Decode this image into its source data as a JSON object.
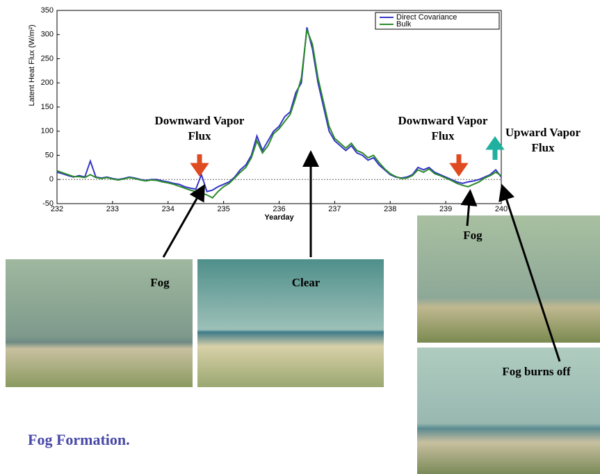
{
  "chart_data": {
    "type": "line",
    "xlabel": "Yearday",
    "ylabel": "Latent Heat Flux (W/m²)",
    "xlim": [
      232,
      240
    ],
    "ylim": [
      -50,
      350
    ],
    "xticks": [
      232,
      233,
      234,
      235,
      236,
      237,
      238,
      239,
      240
    ],
    "yticks": [
      -50,
      0,
      50,
      100,
      150,
      200,
      250,
      300,
      350
    ],
    "legend": "upper right",
    "x": [
      232.0,
      232.1,
      232.2,
      232.3,
      232.4,
      232.5,
      232.6,
      232.7,
      232.8,
      232.9,
      233.0,
      233.1,
      233.2,
      233.3,
      233.4,
      233.5,
      233.6,
      233.7,
      233.8,
      233.9,
      234.0,
      234.1,
      234.2,
      234.3,
      234.4,
      234.5,
      234.6,
      234.7,
      234.8,
      234.9,
      235.0,
      235.1,
      235.2,
      235.3,
      235.4,
      235.5,
      235.6,
      235.7,
      235.8,
      235.9,
      236.0,
      236.1,
      236.2,
      236.3,
      236.4,
      236.5,
      236.6,
      236.7,
      236.8,
      236.9,
      237.0,
      237.1,
      237.2,
      237.3,
      237.4,
      237.5,
      237.6,
      237.7,
      237.8,
      237.9,
      238.0,
      238.1,
      238.2,
      238.3,
      238.4,
      238.5,
      238.6,
      238.7,
      238.8,
      238.9,
      239.0,
      239.1,
      239.2,
      239.3,
      239.4,
      239.5,
      239.6,
      239.7,
      239.8,
      239.9,
      240.0
    ],
    "series": [
      {
        "name": "Direct Covariance",
        "color": "#3535c8",
        "values": [
          15,
          12,
          8,
          5,
          8,
          5,
          38,
          5,
          3,
          5,
          2,
          0,
          2,
          5,
          3,
          0,
          -2,
          0,
          0,
          -3,
          -5,
          -8,
          -10,
          -15,
          -18,
          -20,
          10,
          -25,
          -22,
          -15,
          -10,
          -5,
          5,
          20,
          30,
          50,
          90,
          60,
          80,
          100,
          110,
          130,
          140,
          180,
          200,
          315,
          270,
          200,
          150,
          100,
          80,
          70,
          60,
          70,
          55,
          50,
          40,
          45,
          30,
          20,
          10,
          5,
          3,
          5,
          10,
          25,
          20,
          25,
          15,
          10,
          5,
          0,
          -5,
          -8,
          -5,
          -3,
          0,
          5,
          10,
          20,
          5
        ]
      },
      {
        "name": "Bulk",
        "color": "#2a8a2a",
        "values": [
          18,
          14,
          10,
          6,
          6,
          4,
          10,
          4,
          2,
          4,
          1,
          -1,
          1,
          4,
          2,
          -1,
          -3,
          -1,
          -2,
          -5,
          -7,
          -10,
          -14,
          -18,
          -22,
          -25,
          -28,
          -32,
          -38,
          -25,
          -15,
          -8,
          3,
          15,
          25,
          45,
          80,
          55,
          70,
          95,
          105,
          120,
          135,
          170,
          210,
          310,
          280,
          210,
          160,
          110,
          85,
          75,
          65,
          75,
          60,
          55,
          45,
          50,
          35,
          22,
          12,
          6,
          2,
          3,
          8,
          20,
          15,
          22,
          12,
          8,
          3,
          -2,
          -8,
          -12,
          -15,
          -10,
          -5,
          3,
          8,
          15,
          8
        ]
      }
    ],
    "annotations": [
      "Downward Vapor Flux",
      "Downward Vapor Flux",
      "Upward Vapor Flux",
      "Fog",
      "Clear",
      "Fog",
      "Fog burns off"
    ],
    "caption": "Fog Formation."
  }
}
